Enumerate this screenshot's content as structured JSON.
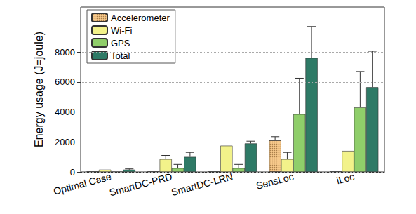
{
  "chart_data": {
    "type": "bar",
    "y_label": "Energy usage (J=joule)",
    "categories": [
      "Optimal Case",
      "SmartDC-PRD",
      "SmartDC-LRN",
      "SensLoc",
      "iLoc"
    ],
    "series": [
      {
        "name": "Accelerometer",
        "color": "#f7c98b",
        "values": [
          0,
          0,
          0,
          2100,
          0
        ],
        "errors": [
          0,
          0,
          0,
          250,
          0
        ]
      },
      {
        "name": "Wi-Fi",
        "color": "#f2f28a",
        "values": [
          150,
          850,
          1750,
          850,
          1400
        ],
        "errors": [
          0,
          250,
          0,
          450,
          0
        ]
      },
      {
        "name": "GPS",
        "color": "#8fce6a",
        "values": [
          0,
          250,
          250,
          3850,
          4300
        ],
        "errors": [
          0,
          250,
          250,
          2400,
          2400
        ]
      },
      {
        "name": "Total",
        "color": "#2e7a66",
        "values": [
          150,
          1000,
          1900,
          7600,
          5650
        ],
        "errors": [
          50,
          300,
          150,
          2100,
          2400
        ]
      }
    ],
    "ylim": [
      0,
      11000
    ],
    "yticks": [
      0,
      2000,
      4000,
      6000,
      8000
    ],
    "grid": true,
    "legend": "upper left"
  }
}
